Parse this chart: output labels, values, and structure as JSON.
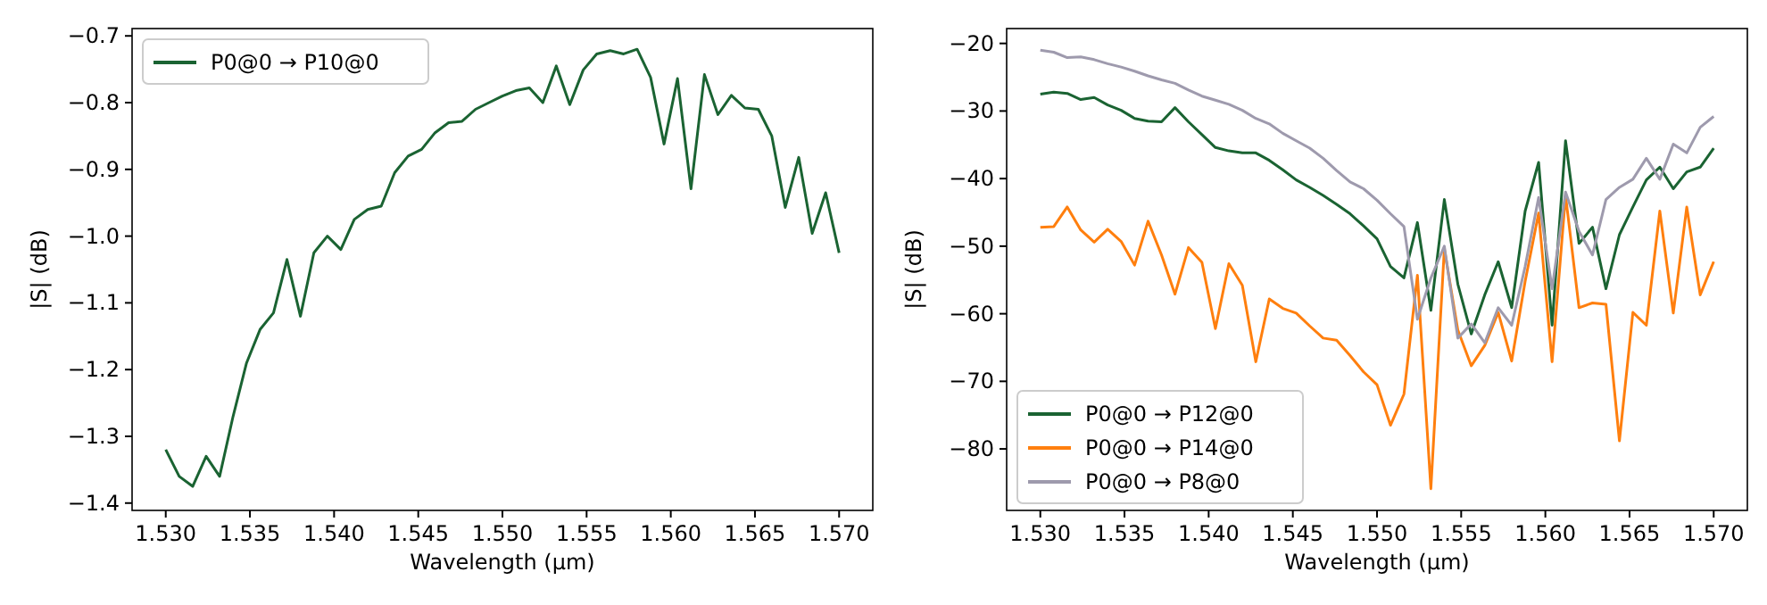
{
  "chart_data": [
    {
      "type": "line",
      "xlabel": "Wavelength (µm)",
      "ylabel": "|S| (dB)",
      "legend": "top left",
      "grid": false,
      "x": [
        1.53,
        1.5308,
        1.5316,
        1.5324,
        1.5332,
        1.534,
        1.5348,
        1.5356,
        1.5364,
        1.5372,
        1.538,
        1.5388,
        1.5396,
        1.5404,
        1.5412,
        1.542,
        1.5428,
        1.5436,
        1.5444,
        1.5452,
        1.546,
        1.5468,
        1.5476,
        1.5484,
        1.5492,
        1.55,
        1.5508,
        1.5516,
        1.5524,
        1.5532,
        1.554,
        1.5548,
        1.5556,
        1.5564,
        1.5572,
        1.558,
        1.5588,
        1.5596,
        1.5604,
        1.5612,
        1.562,
        1.5628,
        1.5636,
        1.5644,
        1.5652,
        1.566,
        1.5668,
        1.5676,
        1.5684,
        1.5692,
        1.57
      ],
      "xlim": [
        1.528,
        1.572
      ],
      "xticks": [
        {
          "value": 1.53,
          "label": "1.530"
        },
        {
          "value": 1.535,
          "label": "1.535"
        },
        {
          "value": 1.54,
          "label": "1.540"
        },
        {
          "value": 1.545,
          "label": "1.545"
        },
        {
          "value": 1.55,
          "label": "1.550"
        },
        {
          "value": 1.555,
          "label": "1.555"
        },
        {
          "value": 1.56,
          "label": "1.560"
        },
        {
          "value": 1.565,
          "label": "1.565"
        },
        {
          "value": 1.57,
          "label": "1.570"
        }
      ],
      "ylim": [
        -1.411,
        -0.689
      ],
      "yticks": [
        {
          "value": -1.4,
          "label": "−1.4"
        },
        {
          "value": -1.3,
          "label": "−1.3"
        },
        {
          "value": -1.2,
          "label": "−1.2"
        },
        {
          "value": -1.1,
          "label": "−1.1"
        },
        {
          "value": -1.0,
          "label": "−1.0"
        },
        {
          "value": -0.9,
          "label": "−0.9"
        },
        {
          "value": -0.8,
          "label": "−0.8"
        },
        {
          "value": -0.7,
          "label": "−0.7"
        }
      ],
      "series": [
        {
          "name": "P0@0 → P10@0",
          "color": "#1a6332",
          "values": [
            -1.32,
            -1.36,
            -1.375,
            -1.33,
            -1.36,
            -1.27,
            -1.19,
            -1.14,
            -1.115,
            -1.035,
            -1.12,
            -1.025,
            -1.0,
            -1.02,
            -0.975,
            -0.96,
            -0.955,
            -0.905,
            -0.88,
            -0.87,
            -0.845,
            -0.83,
            -0.828,
            -0.81,
            -0.8,
            -0.79,
            -0.782,
            -0.778,
            -0.8,
            -0.745,
            -0.803,
            -0.751,
            -0.727,
            -0.722,
            -0.727,
            -0.72,
            -0.762,
            -0.862,
            -0.764,
            -0.929,
            -0.758,
            -0.818,
            -0.789,
            -0.808,
            -0.81,
            -0.85,
            -0.957,
            -0.882,
            -0.996,
            -0.935,
            -1.025
          ]
        }
      ]
    },
    {
      "type": "line",
      "xlabel": "Wavelength (µm)",
      "ylabel": "|S| (dB)",
      "legend": "bottom left",
      "grid": false,
      "x": [
        1.53,
        1.5308,
        1.5316,
        1.5324,
        1.5332,
        1.534,
        1.5348,
        1.5356,
        1.5364,
        1.5372,
        1.538,
        1.5388,
        1.5396,
        1.5404,
        1.5412,
        1.542,
        1.5428,
        1.5436,
        1.5444,
        1.5452,
        1.546,
        1.5468,
        1.5476,
        1.5484,
        1.5492,
        1.55,
        1.5508,
        1.5516,
        1.5524,
        1.5532,
        1.554,
        1.5548,
        1.5556,
        1.5564,
        1.5572,
        1.558,
        1.5588,
        1.5596,
        1.5604,
        1.5612,
        1.562,
        1.5628,
        1.5636,
        1.5644,
        1.5652,
        1.566,
        1.5668,
        1.5676,
        1.5684,
        1.5692,
        1.57
      ],
      "xlim": [
        1.528,
        1.572
      ],
      "xticks": [
        {
          "value": 1.53,
          "label": "1.530"
        },
        {
          "value": 1.535,
          "label": "1.535"
        },
        {
          "value": 1.54,
          "label": "1.540"
        },
        {
          "value": 1.545,
          "label": "1.545"
        },
        {
          "value": 1.55,
          "label": "1.550"
        },
        {
          "value": 1.555,
          "label": "1.555"
        },
        {
          "value": 1.56,
          "label": "1.560"
        },
        {
          "value": 1.565,
          "label": "1.565"
        },
        {
          "value": 1.57,
          "label": "1.570"
        }
      ],
      "ylim": [
        -89.1,
        -17.8
      ],
      "yticks": [
        {
          "value": -80,
          "label": "−80"
        },
        {
          "value": -70,
          "label": "−70"
        },
        {
          "value": -60,
          "label": "−60"
        },
        {
          "value": -50,
          "label": "−50"
        },
        {
          "value": -40,
          "label": "−40"
        },
        {
          "value": -30,
          "label": "−30"
        },
        {
          "value": -20,
          "label": "−20"
        }
      ],
      "series": [
        {
          "name": "P0@0 → P12@0",
          "color": "#1a6332",
          "values": [
            -27.5,
            -27.2,
            -27.4,
            -28.3,
            -28.0,
            -29.1,
            -29.9,
            -31.1,
            -31.5,
            -31.6,
            -29.5,
            -31.6,
            -33.5,
            -35.4,
            -35.9,
            -36.2,
            -36.2,
            -37.3,
            -38.7,
            -40.2,
            -41.3,
            -42.5,
            -43.8,
            -45.2,
            -47.0,
            -48.9,
            -53.0,
            -54.7,
            -46.5,
            -59.5,
            -43.1,
            -55.6,
            -63.0,
            -57.2,
            -52.3,
            -59.1,
            -44.8,
            -37.6,
            -61.7,
            -34.4,
            -49.6,
            -47.2,
            -56.3,
            -48.3,
            -44.2,
            -40.2,
            -38.3,
            -41.5,
            -39.0,
            -38.3,
            -35.5
          ]
        },
        {
          "name": "P0@0 → P14@0",
          "color": "#ff7f0e",
          "values": [
            -47.2,
            -47.1,
            -44.2,
            -47.6,
            -49.4,
            -47.5,
            -49.3,
            -52.8,
            -46.3,
            -51.3,
            -57.1,
            -50.2,
            -52.4,
            -62.2,
            -52.6,
            -55.8,
            -67.1,
            -57.8,
            -59.2,
            -59.9,
            -61.8,
            -63.6,
            -63.9,
            -66.2,
            -68.6,
            -70.5,
            -76.5,
            -71.9,
            -54.3,
            -85.9,
            -50.4,
            -62.4,
            -67.7,
            -64.7,
            -59.8,
            -67.0,
            -55.2,
            -45.1,
            -67.1,
            -42.5,
            -59.1,
            -58.4,
            -58.6,
            -78.8,
            -59.8,
            -61.7,
            -44.8,
            -59.9,
            -44.2,
            -57.2,
            -52.3
          ]
        },
        {
          "name": "P0@0 → P8@0",
          "color": "#9e9aad",
          "values": [
            -21.0,
            -21.3,
            -22.1,
            -22.0,
            -22.4,
            -23.0,
            -23.5,
            -24.1,
            -24.8,
            -25.4,
            -25.9,
            -26.9,
            -27.8,
            -28.4,
            -29.0,
            -29.9,
            -31.1,
            -31.9,
            -33.3,
            -34.4,
            -35.5,
            -37.0,
            -38.8,
            -40.5,
            -41.5,
            -43.2,
            -45.2,
            -47.1,
            -60.8,
            -54.7,
            -50.0,
            -63.6,
            -61.5,
            -64.3,
            -59.1,
            -61.7,
            -53.0,
            -42.8,
            -56.3,
            -42.0,
            -47.8,
            -51.3,
            -43.1,
            -41.3,
            -40.1,
            -37.0,
            -40.1,
            -34.9,
            -36.2,
            -32.4,
            -30.8
          ]
        }
      ]
    }
  ]
}
